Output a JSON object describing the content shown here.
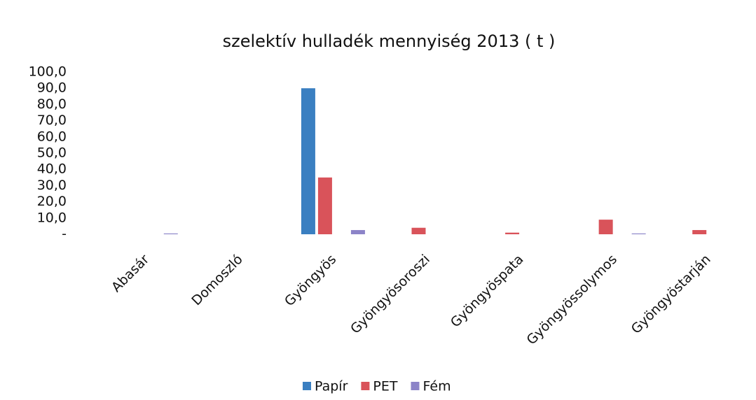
{
  "chart_data": {
    "type": "bar",
    "title": "szelektív hulladék mennyiség 2013 ( t )",
    "categories": [
      "Abasár",
      "Domoszló",
      "Gyöngyös",
      "Gyöngyösoroszi",
      "Gyöngyöspata",
      "Gyöngyössolymos",
      "Gyöngyöstarján"
    ],
    "series": [
      {
        "name": "Papír",
        "color": "#3a7fc1",
        "values": [
          0,
          0,
          90,
          0,
          0,
          0,
          0
        ]
      },
      {
        "name": "PET",
        "color": "#d9535a",
        "values": [
          0,
          0,
          35,
          4,
          1,
          9,
          2.6
        ]
      },
      {
        "name": "Fém",
        "color": "#8c84c8",
        "values": [
          0.5,
          0,
          2.6,
          0,
          0,
          0.5,
          0
        ]
      }
    ],
    "ylim": [
      0,
      100
    ],
    "yticks": [
      {
        "value": 0,
        "label": "-"
      },
      {
        "value": 10,
        "label": "10,0"
      },
      {
        "value": 20,
        "label": "20,0"
      },
      {
        "value": 30,
        "label": "30,0"
      },
      {
        "value": 40,
        "label": "40,0"
      },
      {
        "value": 50,
        "label": "50,0"
      },
      {
        "value": 60,
        "label": "60,0"
      },
      {
        "value": 70,
        "label": "70,0"
      },
      {
        "value": 80,
        "label": "80,0"
      },
      {
        "value": 90,
        "label": "90,0"
      },
      {
        "value": 100,
        "label": "100,0"
      }
    ],
    "legend": "bottom"
  }
}
